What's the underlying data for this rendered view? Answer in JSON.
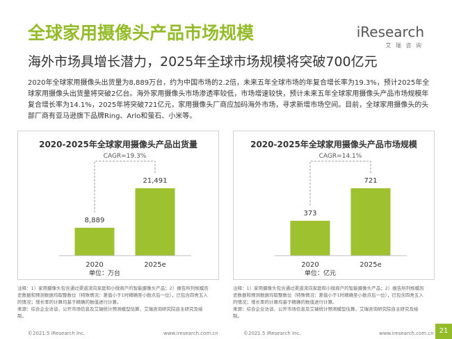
{
  "header": {
    "title": "全球家用摄像头产品市场规模",
    "subtitle": "海外市场具增长潜力，2025年全球市场规模将突破700亿元",
    "logo": "iResearch",
    "logo_sub": "艾 瑞 咨 询"
  },
  "body": "2020年全球家用摄像头出货量为8,889万台，约为中国市场的2.2倍，未来五年全球市场的年复合增长率为19.3%，预计2025年全球家用摄像头出货量将突破2亿台。海外家用摄像头市场渗透率较低，市场增速较快，预计未来五年全球家用摄像头产品市场规模年复合增长率为14.1%，2025年将突破721亿元，家用摄像头厂商应加码海外市场，寻求新增市场空间。目前，全球家用摄像头的头部厂商有亚马逊旗下品牌Ring、Arlo和萤石、小米等。",
  "chart_data": [
    {
      "type": "bar",
      "title": "2020-2025年全球家用摄像头产品出货量",
      "categories": [
        "2020",
        "2025e"
      ],
      "values": [
        8889,
        21491
      ],
      "value_labels": [
        "8,889",
        "21,491"
      ],
      "color": "#9dc12f",
      "annotation": "CAGR=19.3%",
      "unit": "单位：万台",
      "note": "注释：1）家用摄像头包含通过渠道流向家庭和小微商户的智能摄像头产品；2）报告所列规模历史数据和预测数据均取整数位（特殊情况：差值小于1时精确至小数点后一位），已包含四舍五入的情况；增长率的计算均基于精确的数值进行计算。",
      "source": "来源：综合企业访谈、公开市场信息及艾瑞统计预测模型估算，艾瑞咨询研究院自主研究及绘制。"
    },
    {
      "type": "bar",
      "title": "2020-2025年全球家用摄像头产品市场规模",
      "categories": [
        "2020",
        "2025e"
      ],
      "values": [
        373,
        721
      ],
      "color": "#9dc12f",
      "annotation": "CAGR=14.1%",
      "unit": "单位：亿元",
      "note": "注释：1）家用摄像头包含通过渠道流向家庭和小微商户的智能摄像头产品；2）报告所列规模历史数据和预测数据均取整数位（特殊情况：差值小于1时精确至小数点后一位），已包含四舍五入的情况；增长率的计算均基于精确的数值进行计算。",
      "source": "来源：综合企业访谈、公开市场信息及艾瑞统计预测模型估算，艾瑞咨询研究院自主研究及绘制。"
    }
  ],
  "footers": [
    {
      "left": "©2021.5 iResearch Inc.",
      "right": "www.iresearch.com.cn"
    },
    {
      "left": "©2021.5 iResearch Inc.",
      "right": "www.iresearch.com.cn"
    }
  ],
  "page_number": "21"
}
